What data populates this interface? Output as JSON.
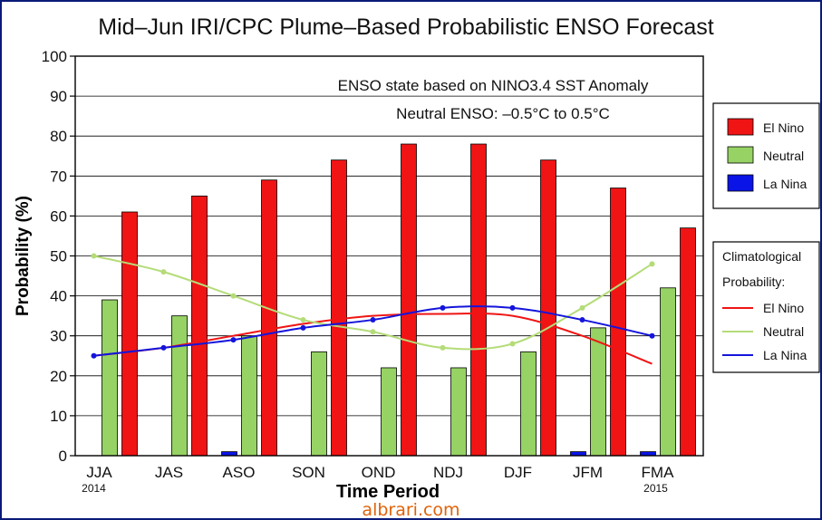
{
  "chart_data": {
    "type": "bar",
    "title": "Mid–Jun IRI/CPC Plume–Based Probabilistic ENSO Forecast",
    "xlabel": "Time Period",
    "ylabel": "Probability (%)",
    "ylim": [
      0,
      100
    ],
    "yticks": [
      0,
      10,
      20,
      30,
      40,
      50,
      60,
      70,
      80,
      90,
      100
    ],
    "grid": true,
    "categories": [
      "JJA",
      "JAS",
      "ASO",
      "SON",
      "OND",
      "NDJ",
      "DJF",
      "JFM",
      "FMA"
    ],
    "year_start": "2014",
    "year_end": "2015",
    "annotations": [
      "ENSO state based on NINO3.4 SST Anomaly",
      "Neutral ENSO: –0.5°C to 0.5°C"
    ],
    "series": [
      {
        "name": "La Nina",
        "kind": "bar",
        "color": "#0a14e6",
        "values": [
          0,
          0,
          1,
          0,
          0,
          0,
          0,
          1,
          1
        ]
      },
      {
        "name": "Neutral",
        "kind": "bar",
        "color": "#96d264",
        "values": [
          39,
          35,
          30,
          26,
          22,
          22,
          26,
          32,
          42
        ]
      },
      {
        "name": "El Nino",
        "kind": "bar",
        "color": "#f01414",
        "values": [
          61,
          65,
          69,
          74,
          78,
          78,
          74,
          67,
          57
        ]
      }
    ],
    "climatology": {
      "title_lines": [
        "Climatological",
        "Probability:"
      ],
      "series": [
        {
          "name": "El Nino",
          "color": "#f01414",
          "values": [
            25,
            27,
            30,
            33,
            35,
            35.5,
            35,
            30,
            23
          ]
        },
        {
          "name": "Neutral",
          "color": "#b4dc78",
          "values": [
            50,
            46,
            40,
            34,
            31,
            27,
            28,
            37,
            48
          ]
        },
        {
          "name": "La Nina",
          "color": "#1414dc",
          "values": [
            25,
            27,
            29,
            32,
            34,
            37,
            37,
            34,
            30
          ]
        }
      ]
    },
    "legend_position": "right"
  },
  "watermark": "albrari.com"
}
